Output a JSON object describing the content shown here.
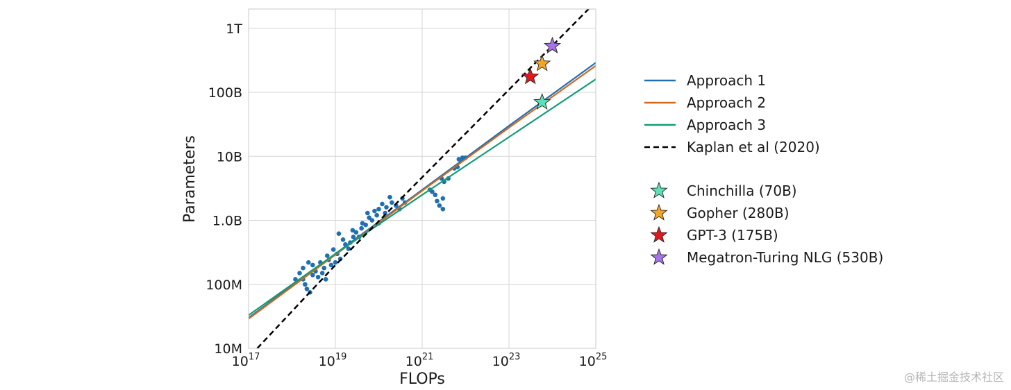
{
  "watermark": "@稀土掘金技术社区",
  "chart_data": {
    "type": "scatter",
    "xlabel": "FLOPs",
    "ylabel": "Parameters",
    "xscale": "log",
    "yscale": "log",
    "xlim": [
      1e+17,
      1e+25
    ],
    "ylim": [
      10000000.0,
      2000000000000.0
    ],
    "grid": true,
    "x_ticks": [
      {
        "value": 1e+17,
        "base": "10",
        "exp": "17"
      },
      {
        "value": 1e+19,
        "base": "10",
        "exp": "19"
      },
      {
        "value": 1e+21,
        "base": "10",
        "exp": "21"
      },
      {
        "value": 1e+23,
        "base": "10",
        "exp": "23"
      },
      {
        "value": 1e+25,
        "base": "10",
        "exp": "25"
      }
    ],
    "y_ticks": [
      {
        "value": 10000000.0,
        "label": "10M"
      },
      {
        "value": 100000000.0,
        "label": "100M"
      },
      {
        "value": 1000000000.0,
        "label": "1.0B"
      },
      {
        "value": 10000000000.0,
        "label": "10B"
      },
      {
        "value": 100000000000.0,
        "label": "100B"
      },
      {
        "value": 1000000000000.0,
        "label": "1T"
      }
    ],
    "legend_position": "right",
    "lines": [
      {
        "name": "Approach 1",
        "color": "#1f6fb2",
        "dash": "solid",
        "x": [
          1e+17,
          1e+19,
          1e+21,
          1e+23,
          1e+25
        ],
        "y": [
          30000000.0,
          300000000.0,
          3000000000.0,
          30000000000.0,
          290000000000.0
        ]
      },
      {
        "name": "Approach 2",
        "color": "#d2691e",
        "dash": "solid",
        "x": [
          1e+17,
          1e+19,
          1e+21,
          1e+23,
          1e+25
        ],
        "y": [
          29000000.0,
          290000000.0,
          2900000000.0,
          28000000000.0,
          260000000000.0
        ]
      },
      {
        "name": "Approach 3",
        "color": "#139c74",
        "dash": "solid",
        "x": [
          1e+17,
          1e+19,
          1e+21,
          1e+23,
          1e+25
        ],
        "y": [
          33000000.0,
          300000000.0,
          2500000000.0,
          20000000000.0,
          160000000000.0
        ]
      },
      {
        "name": "Kaplan et al (2020)",
        "color": "#000000",
        "dash": "dashed",
        "x": [
          1.58e+17,
          1e+19,
          1e+21,
          1e+23,
          1e+25
        ],
        "y": [
          10000000.0,
          200000000.0,
          4700000000.0,
          110000000000.0,
          2600000000000.0
        ]
      }
    ],
    "stars": [
      {
        "name": "Chinchilla (70B)",
        "color": "#5ee0b6",
        "x": 5.8e+23,
        "y": 70000000000.0
      },
      {
        "name": "Gopher (280B)",
        "color": "#f5a524",
        "x": 5.8e+23,
        "y": 280000000000.0
      },
      {
        "name": "GPT-3 (175B)",
        "color": "#e3181e",
        "x": 3.1e+23,
        "y": 175000000000.0
      },
      {
        "name": "Megatron-Turing NLG (530B)",
        "color": "#a772ea",
        "x": 1e+24,
        "y": 530000000000.0
      }
    ],
    "scatter": {
      "name": "Approach 1 data",
      "color": "#1f6fb2",
      "points": [
        [
          1.2e+18,
          120000000.0
        ],
        [
          1.5e+18,
          150000000.0
        ],
        [
          1.8e+18,
          120000000.0
        ],
        [
          2e+18,
          100000000.0
        ],
        [
          2.2e+18,
          85000000.0
        ],
        [
          2.6e+18,
          75000000.0
        ],
        [
          1.8e+18,
          180000000.0
        ],
        [
          2.4e+18,
          220000000.0
        ],
        [
          3e+18,
          200000000.0
        ],
        [
          3.5e+18,
          160000000.0
        ],
        [
          3e+18,
          140000000.0
        ],
        [
          4e+18,
          130000000.0
        ],
        [
          4.5e+18,
          220000000.0
        ],
        [
          5.5e+18,
          180000000.0
        ],
        [
          5e+18,
          150000000.0
        ],
        [
          6e+18,
          120000000.0
        ],
        [
          7e+18,
          240000000.0
        ],
        [
          8e+18,
          200000000.0
        ],
        [
          6.5e+18,
          280000000.0
        ],
        [
          9e+18,
          350000000.0
        ],
        [
          1.1e+19,
          300000000.0
        ],
        [
          1.3e+19,
          250000000.0
        ],
        [
          1e+19,
          220000000.0
        ],
        [
          1.2e+19,
          620000000.0
        ],
        [
          1.5e+19,
          500000000.0
        ],
        [
          1.7e+19,
          420000000.0
        ],
        [
          2e+19,
          360000000.0
        ],
        [
          2.2e+19,
          450000000.0
        ],
        [
          2.6e+19,
          550000000.0
        ],
        [
          3e+19,
          650000000.0
        ],
        [
          2.5e+19,
          700000000.0
        ],
        [
          3.5e+19,
          550000000.0
        ],
        [
          4e+19,
          750000000.0
        ],
        [
          4.2e+19,
          900000000.0
        ],
        [
          5e+19,
          850000000.0
        ],
        [
          6e+19,
          1100000000.0
        ],
        [
          5.5e+19,
          1300000000.0
        ],
        [
          7e+19,
          1000000000.0
        ],
        [
          8e+19,
          1400000000.0
        ],
        [
          1e+20,
          1500000000.0
        ],
        [
          1.2e+20,
          1800000000.0
        ],
        [
          9e+19,
          1200000000.0
        ],
        [
          1.5e+20,
          1600000000.0
        ],
        [
          1.8e+20,
          2300000000.0
        ],
        [
          2e+20,
          1900000000.0
        ],
        [
          1.4e+20,
          1300000000.0
        ],
        [
          2.5e+20,
          1700000000.0
        ],
        [
          3e+20,
          1500000000.0
        ],
        [
          3.5e+20,
          2200000000.0
        ],
        [
          4e+20,
          1900000000.0
        ],
        [
          1e+20,
          900000000.0
        ],
        [
          1.5e+21,
          3000000000.0
        ],
        [
          1.7e+21,
          2800000000.0
        ],
        [
          2e+21,
          2500000000.0
        ],
        [
          2.2e+21,
          2000000000.0
        ],
        [
          2.5e+21,
          1700000000.0
        ],
        [
          3e+21,
          2200000000.0
        ],
        [
          2.8e+21,
          4500000000.0
        ],
        [
          3.2e+21,
          4000000000.0
        ],
        [
          4e+21,
          4500000000.0
        ],
        [
          5.5e+21,
          6500000000.0
        ],
        [
          6.5e+21,
          6800000000.0
        ],
        [
          7e+21,
          9000000000.0
        ],
        [
          8.5e+21,
          9500000000.0
        ],
        [
          1e+22,
          9500000000.0
        ],
        [
          3e+21,
          1500000000.0
        ]
      ]
    }
  }
}
